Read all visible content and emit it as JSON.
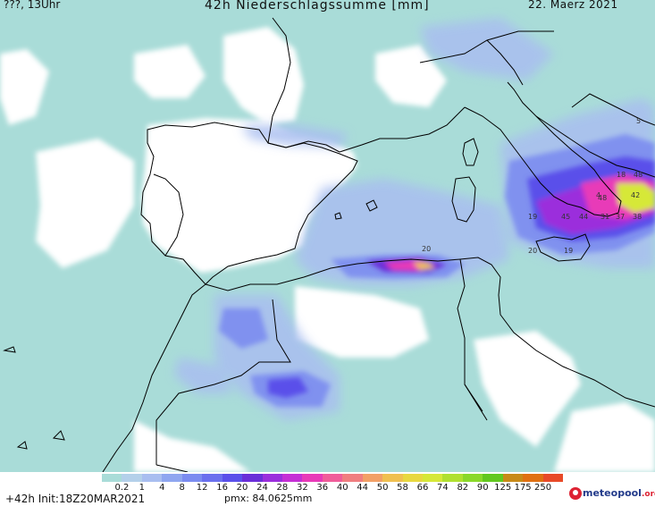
{
  "header": {
    "left_text": "???, 13Uhr",
    "title": "42h Niederschlagssumme [mm]",
    "date": "22. Maerz 2021"
  },
  "footer": {
    "init_text": "+42h Init:18Z20MAR2021",
    "pmx_text": "pmx: 84.0625mm",
    "brand_main": "meteopool",
    "brand_tld": ".org"
  },
  "legend": {
    "labels": [
      "0.2",
      "1",
      "4",
      "8",
      "12",
      "16",
      "20",
      "24",
      "28",
      "32",
      "36",
      "40",
      "44",
      "50",
      "58",
      "66",
      "74",
      "82",
      "90",
      "125",
      "175",
      "250"
    ],
    "colors": [
      "#a9dcd8",
      "#b4d0ea",
      "#a9bef0",
      "#8fa6f0",
      "#7b8cf0",
      "#6a70ee",
      "#5a50ea",
      "#6a2ed8",
      "#9b2edc",
      "#c52fd5",
      "#e83ab8",
      "#f05d9a",
      "#f07e80",
      "#f2a066",
      "#f0c050",
      "#e8d840",
      "#d6e838",
      "#b0e030",
      "#8ad82a",
      "#62c81f",
      "#c88a18",
      "#e07012",
      "#e84a28"
    ]
  },
  "map_values": [
    {
      "label": "20"
    },
    {
      "label": "48"
    },
    {
      "label": "5"
    },
    {
      "label": "42"
    },
    {
      "label": "38"
    },
    {
      "label": "37"
    },
    {
      "label": "31"
    },
    {
      "label": "44"
    },
    {
      "label": "45"
    },
    {
      "label": "19"
    },
    {
      "label": "20"
    },
    {
      "label": "19"
    },
    {
      "label": "18"
    },
    {
      "label": "48"
    },
    {
      "label": "4"
    }
  ]
}
